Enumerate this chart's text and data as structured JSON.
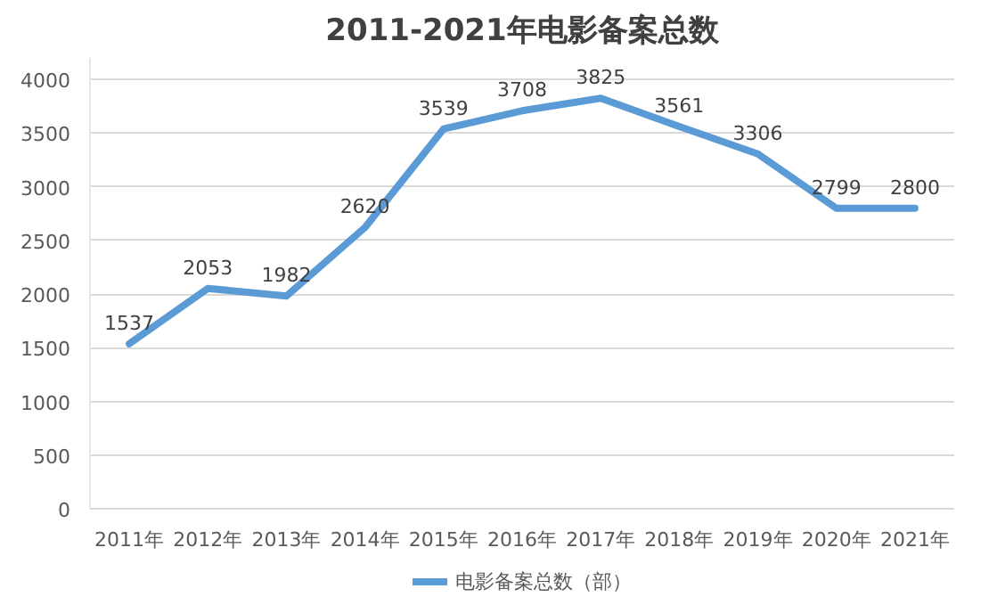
{
  "chart_data": {
    "type": "line",
    "title": "2011-2021年电影备案总数",
    "categories": [
      "2011年",
      "2012年",
      "2013年",
      "2014年",
      "2015年",
      "2016年",
      "2017年",
      "2018年",
      "2019年",
      "2020年",
      "2021年"
    ],
    "series": [
      {
        "name": "电影备案总数（部）",
        "color": "#5b9bd5",
        "values": [
          1537,
          2053,
          1982,
          2620,
          3539,
          3708,
          3825,
          3561,
          3306,
          2799,
          2800
        ]
      }
    ],
    "ylim": [
      0,
      4200
    ],
    "yticks": [
      0,
      500,
      1000,
      1500,
      2000,
      2500,
      3000,
      3500,
      4000
    ],
    "grid": "y",
    "legend": "bottom",
    "data_labels": true,
    "marker": "none",
    "line_style": "solid"
  }
}
